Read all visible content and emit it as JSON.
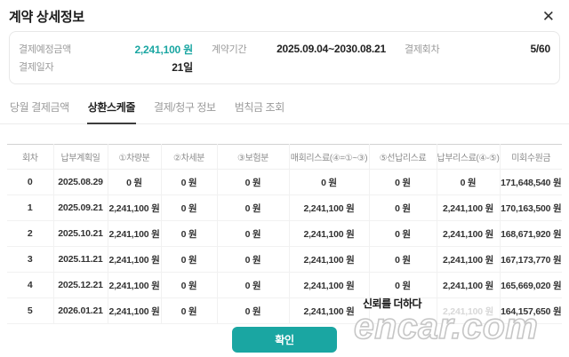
{
  "modal": {
    "title": "계약 상세정보",
    "close_icon": "✕"
  },
  "summary": {
    "rows": [
      [
        {
          "id": "expected-payment-amount",
          "label": "결제예정금액",
          "value": "2,241,100 원",
          "accent": true
        },
        {
          "id": "contract-period",
          "label": "계약기간",
          "value": "2025.09.04~2030.08.21",
          "accent": false
        },
        {
          "id": "payment-round",
          "label": "결제회차",
          "value": "5/60",
          "accent": false
        }
      ],
      [
        {
          "id": "payment-date",
          "label": "결제일자",
          "value": "21일",
          "accent": false
        }
      ]
    ]
  },
  "tabs": [
    {
      "id": "monthly-payment",
      "label": "당월 결제금액",
      "active": false
    },
    {
      "id": "repayment-schedule",
      "label": "상환스케줄",
      "active": true
    },
    {
      "id": "billing-info",
      "label": "결제/청구 정보",
      "active": false
    },
    {
      "id": "penalty-inquiry",
      "label": "범칙금 조회",
      "active": false
    }
  ],
  "schedule_table": {
    "columns": [
      "회차",
      "납부계획일",
      "①차량분",
      "②차세분",
      "③보험분",
      "매회리스료(④=①~③)",
      "⑤선납리스료",
      "납부리스료(④-⑤)",
      "미회수원금"
    ],
    "rows": [
      [
        "0",
        "2025.08.29",
        "0 원",
        "0 원",
        "0 원",
        "0 원",
        "0 원",
        "0 원",
        "171,648,540 원"
      ],
      [
        "1",
        "2025.09.21",
        "2,241,100 원",
        "0 원",
        "0 원",
        "2,241,100 원",
        "0 원",
        "2,241,100 원",
        "170,163,500 원"
      ],
      [
        "2",
        "2025.10.21",
        "2,241,100 원",
        "0 원",
        "0 원",
        "2,241,100 원",
        "0 원",
        "2,241,100 원",
        "168,671,920 원"
      ],
      [
        "3",
        "2025.11.21",
        "2,241,100 원",
        "0 원",
        "0 원",
        "2,241,100 원",
        "0 원",
        "2,241,100 원",
        "167,173,770 원"
      ],
      [
        "4",
        "2025.12.21",
        "2,241,100 원",
        "0 원",
        "0 원",
        "2,241,100 원",
        "0 원",
        "2,241,100 원",
        "165,669,020 원"
      ],
      [
        "5",
        "2026.01.21",
        "2,241,100 원",
        "0 원",
        "0 원",
        "2,241,100 원",
        "",
        "2,241,100 원",
        "164,157,650 원"
      ]
    ],
    "faded_cells": [
      [
        5,
        7
      ]
    ]
  },
  "footer": {
    "confirm_label": "확인"
  },
  "watermark": {
    "slogan": "신뢰를 더하다",
    "site": "encar.com"
  },
  "colors": {
    "accent_teal": "#1aa6a2"
  }
}
